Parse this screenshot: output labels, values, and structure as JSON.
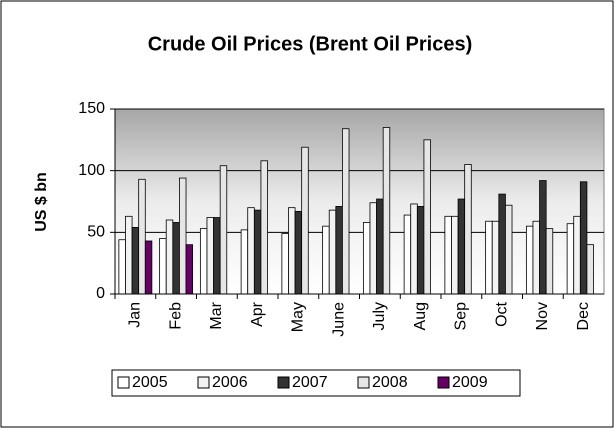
{
  "chart_data": {
    "type": "bar",
    "title": "Crude Oil Prices (Brent Oil Prices)",
    "y_label": "US $ bn",
    "categories": [
      "Jan",
      "Feb",
      "Mar",
      "Apr",
      "May",
      "June",
      "July",
      "Aug",
      "Sep",
      "Oct",
      "Nov",
      "Dec"
    ],
    "series": [
      {
        "name": "2005",
        "color": "#ffffff",
        "values": [
          44,
          45,
          53,
          52,
          49,
          55,
          58,
          64,
          63,
          59,
          55,
          57
        ]
      },
      {
        "name": "2006",
        "color": "#f2f2f2",
        "values": [
          63,
          60,
          62,
          70,
          70,
          68,
          74,
          73,
          63,
          59,
          59,
          63
        ]
      },
      {
        "name": "2007",
        "color": "#333333",
        "values": [
          54,
          58,
          62,
          68,
          67,
          71,
          77,
          71,
          77,
          81,
          92,
          91
        ]
      },
      {
        "name": "2008",
        "color": "#e6e6e6",
        "values": [
          93,
          94,
          104,
          108,
          119,
          134,
          135,
          125,
          105,
          72,
          53,
          40
        ]
      },
      {
        "name": "2009",
        "color": "#660066",
        "values": [
          43,
          40,
          null,
          null,
          null,
          null,
          null,
          null,
          null,
          null,
          null,
          null
        ]
      }
    ],
    "ylim": [
      0,
      150
    ],
    "yticks": [
      0,
      50,
      100,
      150
    ],
    "grid": true,
    "legend": "bottom"
  }
}
